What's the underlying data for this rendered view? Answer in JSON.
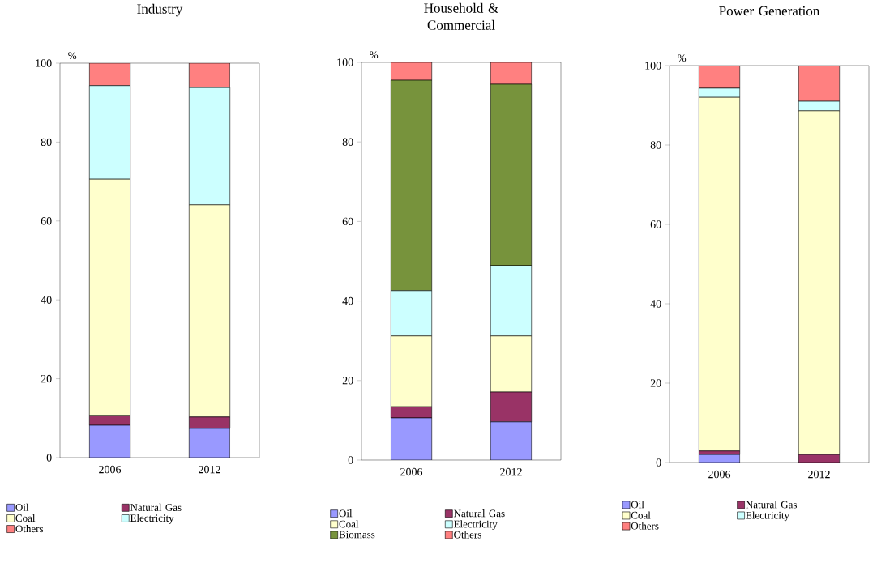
{
  "chart_data": [
    {
      "type": "bar",
      "title": "Industry",
      "ylabel": "%",
      "categories": [
        "2006",
        "2012"
      ],
      "stacked": true,
      "ylim": [
        0,
        100
      ],
      "yticks": [
        0,
        20,
        40,
        60,
        80,
        100
      ],
      "legend": "bottom",
      "series": [
        {
          "name": "Oil",
          "color": "#9999ff",
          "values": [
            8.2,
            7.4
          ]
        },
        {
          "name": "Natural Gas",
          "color": "#993366",
          "values": [
            2.5,
            2.9
          ]
        },
        {
          "name": "Coal",
          "color": "#ffffcc",
          "values": [
            59.9,
            53.8
          ]
        },
        {
          "name": "Electricity",
          "color": "#ccffff",
          "values": [
            23.7,
            29.7
          ]
        },
        {
          "name": "Others",
          "color": "#ff8080",
          "values": [
            5.7,
            6.2
          ]
        }
      ]
    },
    {
      "type": "bar",
      "title": "Household & Commercial",
      "ylabel": "%",
      "categories": [
        "2006",
        "2012"
      ],
      "stacked": true,
      "ylim": [
        0,
        100
      ],
      "yticks": [
        0,
        20,
        40,
        60,
        80,
        100
      ],
      "legend": "bottom",
      "series": [
        {
          "name": "Oil",
          "color": "#9999ff",
          "values": [
            10.6,
            9.6
          ]
        },
        {
          "name": "Natural Gas",
          "color": "#993366",
          "values": [
            2.8,
            7.5
          ]
        },
        {
          "name": "Coal",
          "color": "#ffffcc",
          "values": [
            17.8,
            14.1
          ]
        },
        {
          "name": "Electricity",
          "color": "#ccffff",
          "values": [
            11.4,
            17.7
          ]
        },
        {
          "name": "Biomass",
          "color": "#77933c",
          "values": [
            52.9,
            45.6
          ]
        },
        {
          "name": "Others",
          "color": "#ff8080",
          "values": [
            4.5,
            5.5
          ]
        }
      ]
    },
    {
      "type": "bar",
      "title": "Power Generation",
      "ylabel": "%",
      "categories": [
        "2006",
        "2012"
      ],
      "stacked": true,
      "ylim": [
        0,
        100
      ],
      "yticks": [
        0,
        20,
        40,
        60,
        80,
        100
      ],
      "legend": "bottom",
      "series": [
        {
          "name": "Oil",
          "color": "#9999ff",
          "values": [
            2.0,
            null
          ]
        },
        {
          "name": "Natural Gas",
          "color": "#993366",
          "values": [
            0.9,
            2.0
          ]
        },
        {
          "name": "Coal",
          "color": "#ffffcc",
          "values": [
            89.1,
            86.6
          ]
        },
        {
          "name": "Electricity",
          "color": "#ccffff",
          "values": [
            2.3,
            2.4
          ]
        },
        {
          "name": "Others",
          "color": "#ff8080",
          "values": [
            5.7,
            9.0
          ]
        }
      ]
    }
  ]
}
